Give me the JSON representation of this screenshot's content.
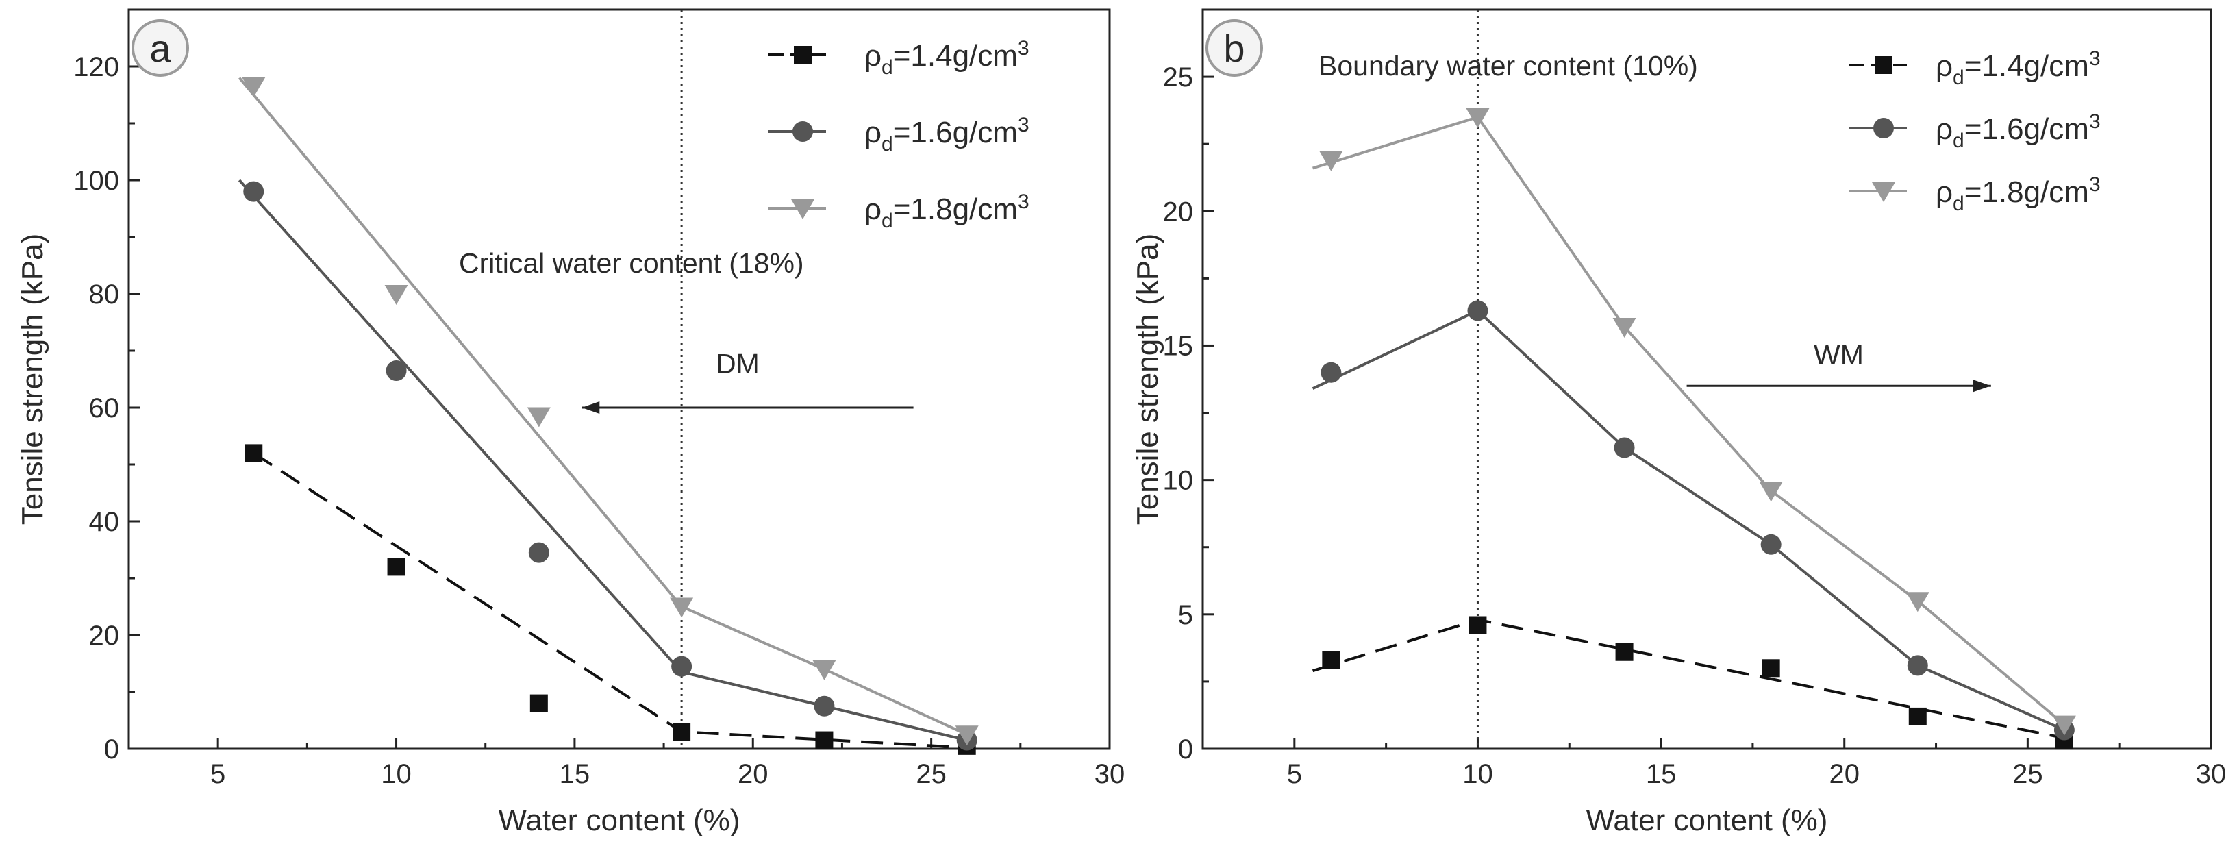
{
  "chart_data": [
    {
      "type": "line",
      "panel_label": "a",
      "xlabel": "Water content (%)",
      "ylabel": "Tensile strength (kPa)",
      "xlim": [
        2.5,
        30
      ],
      "ylim": [
        0,
        130
      ],
      "xticks": [
        5,
        10,
        15,
        20,
        25,
        30
      ],
      "yticks": [
        0,
        20,
        40,
        60,
        80,
        100,
        120
      ],
      "grid": false,
      "legend_position": "top-right",
      "series": [
        {
          "name": "ρd=1.4g/cm3",
          "label_main": "ρ",
          "label_sub": "d",
          "label_rest": "=1.4g/cm",
          "label_sup": "3",
          "color": "#111111",
          "marker": "square",
          "line": "dashed",
          "x": [
            6,
            10,
            14,
            18,
            22,
            26
          ],
          "y": [
            52,
            32,
            8,
            3,
            1.5,
            0.5
          ],
          "fit_x": [
            6,
            18,
            26
          ],
          "fit_y": [
            52,
            3,
            0.2
          ]
        },
        {
          "name": "ρd=1.6g/cm3",
          "label_main": "ρ",
          "label_sub": "d",
          "label_rest": "=1.6g/cm",
          "label_sup": "3",
          "color": "#555555",
          "marker": "circle",
          "line": "solid",
          "x": [
            6,
            10,
            14,
            18,
            22,
            26
          ],
          "y": [
            98,
            66.5,
            34.5,
            14.5,
            7.5,
            1.5
          ],
          "fit_x": [
            5.6,
            18,
            22,
            26
          ],
          "fit_y": [
            100,
            13.5,
            7.5,
            1.5
          ]
        },
        {
          "name": "ρd=1.8g/cm3",
          "label_main": "ρ",
          "label_sub": "d",
          "label_rest": "=1.8g/cm",
          "label_sup": "3",
          "color": "#999999",
          "marker": "triangle-down",
          "line": "solid",
          "x": [
            6,
            10,
            14,
            18,
            22,
            26
          ],
          "y": [
            116.5,
            80,
            58.5,
            25,
            14,
            2.5
          ],
          "fit_x": [
            5.6,
            18,
            22,
            26
          ],
          "fit_y": [
            118,
            25,
            14,
            2.5
          ]
        }
      ],
      "vline": {
        "x": 18,
        "label": "Critical water content (18%)"
      },
      "arrow": {
        "label": "DM",
        "direction": "left",
        "from_x": 24.5,
        "to_x": 15.2,
        "y": 60
      }
    },
    {
      "type": "line",
      "panel_label": "b",
      "xlabel": "Water content (%)",
      "ylabel": "Tensile strength (kPa)",
      "xlim": [
        2.5,
        30
      ],
      "ylim": [
        0,
        27.5
      ],
      "xticks": [
        5,
        10,
        15,
        20,
        25,
        30
      ],
      "yticks": [
        0,
        5,
        10,
        15,
        20,
        25
      ],
      "grid": false,
      "legend_position": "top-right",
      "series": [
        {
          "name": "ρd=1.4g/cm3",
          "label_main": "ρ",
          "label_sub": "d",
          "label_rest": "=1.4g/cm",
          "label_sup": "3",
          "color": "#111111",
          "marker": "square",
          "line": "dashed",
          "x": [
            6,
            10,
            14,
            18,
            22,
            26
          ],
          "y": [
            3.3,
            4.6,
            3.6,
            3.0,
            1.2,
            0.3
          ],
          "fit_x": [
            5.5,
            10,
            26
          ],
          "fit_y": [
            2.9,
            4.8,
            0.4
          ]
        },
        {
          "name": "ρd=1.6g/cm3",
          "label_main": "ρ",
          "label_sub": "d",
          "label_rest": "=1.6g/cm",
          "label_sup": "3",
          "color": "#555555",
          "marker": "circle",
          "line": "solid",
          "x": [
            6,
            10,
            14,
            18,
            22,
            26
          ],
          "y": [
            14,
            16.3,
            11.2,
            7.6,
            3.1,
            0.7
          ],
          "fit_x": [
            5.5,
            10,
            14,
            18,
            22,
            26
          ],
          "fit_y": [
            13.4,
            16.3,
            11.2,
            7.6,
            3.1,
            0.7
          ]
        },
        {
          "name": "ρd=1.8g/cm3",
          "label_main": "ρ",
          "label_sub": "d",
          "label_rest": "=1.8g/cm",
          "label_sup": "3",
          "color": "#999999",
          "marker": "triangle-down",
          "line": "solid",
          "x": [
            6,
            10,
            14,
            18,
            22,
            26
          ],
          "y": [
            21.9,
            23.5,
            15.7,
            9.6,
            5.5,
            0.9
          ],
          "fit_x": [
            5.5,
            10,
            14,
            18,
            22,
            26
          ],
          "fit_y": [
            21.6,
            23.5,
            15.7,
            9.6,
            5.5,
            0.9
          ]
        }
      ],
      "vline": {
        "x": 10,
        "label": "Boundary water content (10%)"
      },
      "arrow": {
        "label": "WM",
        "direction": "right",
        "from_x": 15.7,
        "to_x": 24,
        "y": 13.5
      }
    }
  ]
}
